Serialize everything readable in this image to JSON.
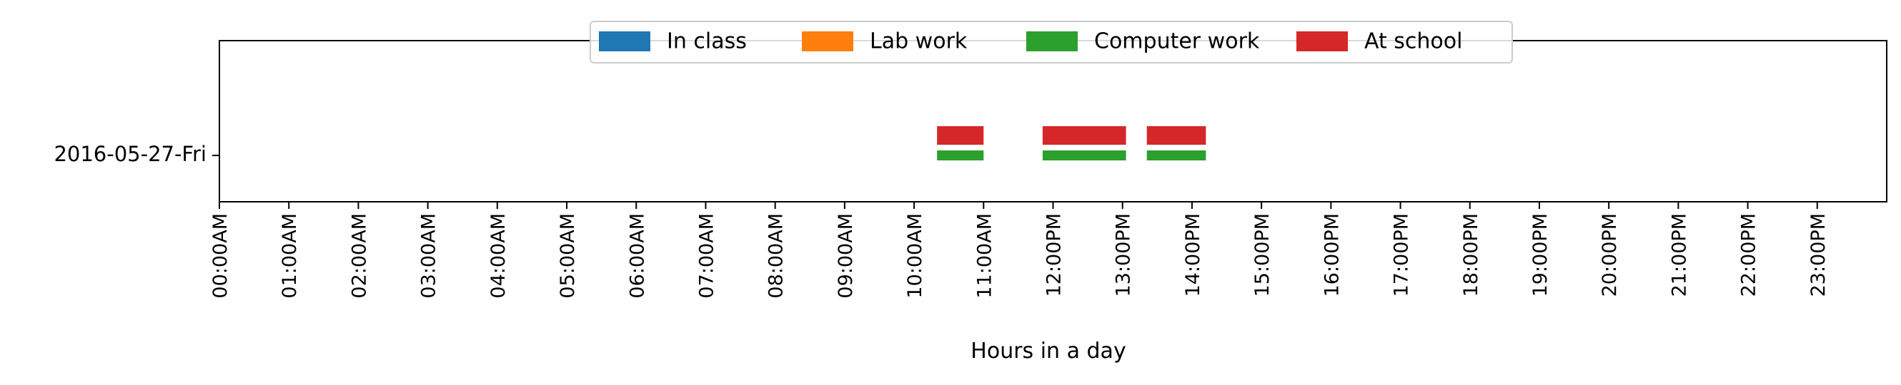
{
  "chart_data": {
    "type": "bar",
    "orientation": "horizontal",
    "title": "",
    "xlabel": "Hours in a day",
    "ylabel": "",
    "xlim": [
      0,
      24
    ],
    "categories": [
      "2016-05-27-Fri"
    ],
    "x_ticks": [
      {
        "value": 0,
        "label": "00:00AM"
      },
      {
        "value": 1,
        "label": "01:00AM"
      },
      {
        "value": 2,
        "label": "02:00AM"
      },
      {
        "value": 3,
        "label": "03:00AM"
      },
      {
        "value": 4,
        "label": "04:00AM"
      },
      {
        "value": 5,
        "label": "05:00AM"
      },
      {
        "value": 6,
        "label": "06:00AM"
      },
      {
        "value": 7,
        "label": "07:00AM"
      },
      {
        "value": 8,
        "label": "08:00AM"
      },
      {
        "value": 9,
        "label": "09:00AM"
      },
      {
        "value": 10,
        "label": "10:00AM"
      },
      {
        "value": 11,
        "label": "11:00AM"
      },
      {
        "value": 12,
        "label": "12:00PM"
      },
      {
        "value": 13,
        "label": "13:00PM"
      },
      {
        "value": 14,
        "label": "14:00PM"
      },
      {
        "value": 15,
        "label": "15:00PM"
      },
      {
        "value": 16,
        "label": "16:00PM"
      },
      {
        "value": 17,
        "label": "17:00PM"
      },
      {
        "value": 18,
        "label": "18:00PM"
      },
      {
        "value": 19,
        "label": "19:00PM"
      },
      {
        "value": 20,
        "label": "20:00PM"
      },
      {
        "value": 21,
        "label": "21:00PM"
      },
      {
        "value": 22,
        "label": "22:00PM"
      },
      {
        "value": 23,
        "label": "23:00PM"
      }
    ],
    "legend_position": "top-center",
    "grid": false,
    "series": [
      {
        "name": "In class",
        "color": "#1f77b4",
        "intervals": []
      },
      {
        "name": "Lab work",
        "color": "#ff7f0e",
        "intervals": []
      },
      {
        "name": "Computer work",
        "color": "#2ca02c",
        "intervals": [
          {
            "category": "2016-05-27-Fri",
            "start": 10.33,
            "end": 11.0
          },
          {
            "category": "2016-05-27-Fri",
            "start": 11.85,
            "end": 13.05
          },
          {
            "category": "2016-05-27-Fri",
            "start": 13.35,
            "end": 14.2
          }
        ]
      },
      {
        "name": "At school",
        "color": "#d62728",
        "intervals": [
          {
            "category": "2016-05-27-Fri",
            "start": 10.33,
            "end": 11.0
          },
          {
            "category": "2016-05-27-Fri",
            "start": 11.85,
            "end": 13.05
          },
          {
            "category": "2016-05-27-Fri",
            "start": 13.35,
            "end": 14.2
          }
        ]
      }
    ]
  }
}
